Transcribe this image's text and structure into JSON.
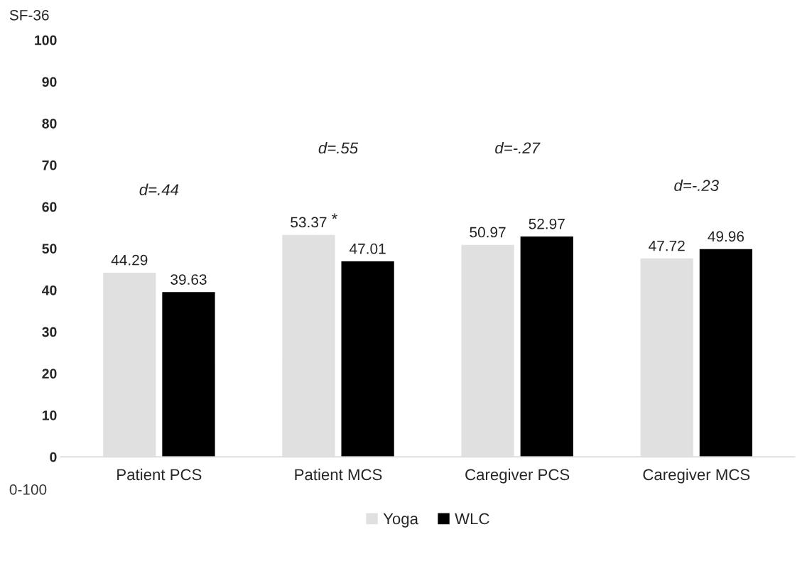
{
  "chart_data": {
    "type": "bar",
    "ylabel": "SF-36",
    "categories": [
      "Patient PCS",
      "Patient MCS",
      "Caregiver PCS",
      "Caregiver MCS"
    ],
    "series": [
      {
        "name": "Yoga",
        "color": "#e0e0e0",
        "values": [
          44.29,
          53.37,
          50.97,
          47.72
        ]
      },
      {
        "name": "WLC",
        "color": "#000000",
        "values": [
          39.63,
          47.01,
          52.97,
          49.96
        ]
      }
    ],
    "ylim": [
      0,
      100
    ],
    "yticks": [
      0,
      10,
      20,
      30,
      40,
      50,
      60,
      70,
      80,
      90,
      100
    ],
    "data_labels": true,
    "grid": false,
    "legend": "bottom",
    "annotations": [
      "0-100",
      "d=.44",
      "d=.55",
      "d=-.27",
      "d=-.23",
      "*"
    ]
  }
}
